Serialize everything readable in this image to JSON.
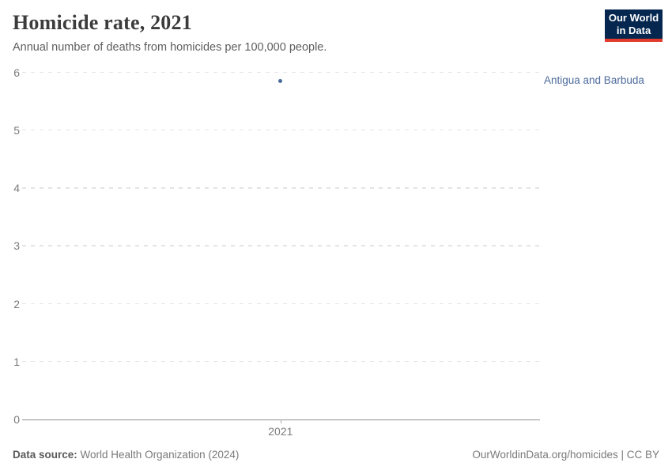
{
  "header": {
    "title": "Homicide rate, 2021",
    "subtitle": "Annual number of deaths from homicides per 100,000 people.",
    "logo": {
      "line1": "Our World",
      "line2": "in Data",
      "bg": "#04264F",
      "accent": "#E23B2E"
    }
  },
  "chart_data": {
    "type": "scatter",
    "title": "Homicide rate, 2021",
    "ylabel": "",
    "xlabel": "",
    "ylim": [
      0,
      6
    ],
    "yticks": [
      0,
      1,
      2,
      3,
      4,
      5,
      6
    ],
    "xticks": [
      "2021"
    ],
    "x_fraction": 0.499,
    "grid": "horizontal dashed",
    "legend_position": "entity label right of plot",
    "series": [
      {
        "name": "Antigua and Barbuda",
        "color": "#4C6A9C",
        "points": [
          {
            "x": 2021,
            "y": 5.85
          }
        ]
      }
    ]
  },
  "footer": {
    "source_label": "Data source:",
    "source_value": " World Health Organization (2024)",
    "credit": "OurWorldinData.org/homicides | CC BY"
  }
}
